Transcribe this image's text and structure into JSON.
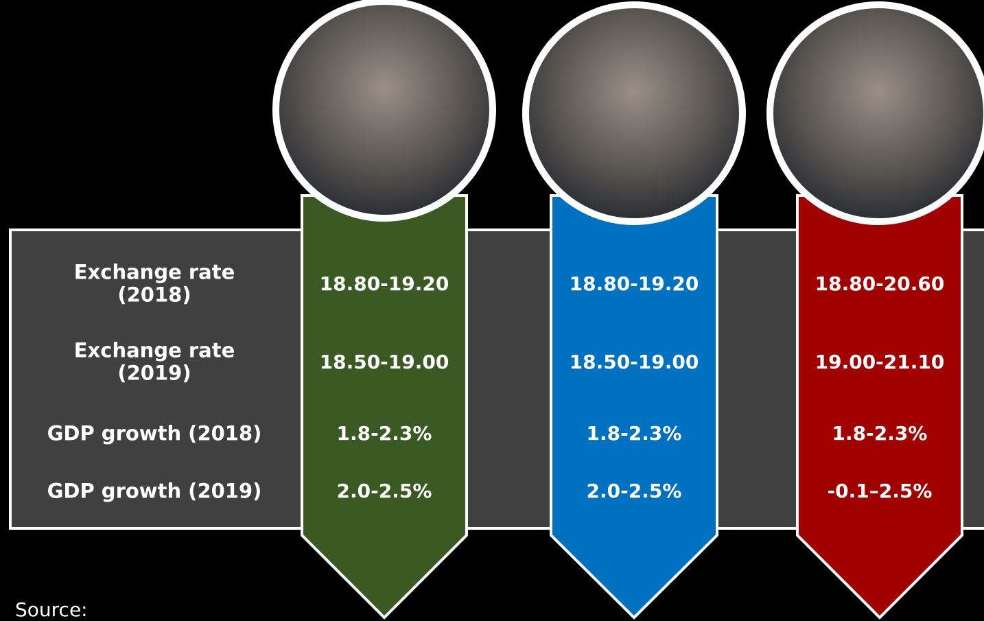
{
  "table": {
    "row_labels": [
      "Exchange rate\n(2018)",
      "Exchange rate\n(2019)",
      "GDP growth (2018)",
      "GDP growth (2019)"
    ],
    "columns": [
      {
        "values": [
          "18.80-19.20",
          "18.50-19.00",
          "1.8-2.3%",
          "2.0-2.5%"
        ]
      },
      {
        "values": [
          "18.80-19.20",
          "18.50-19.00",
          "1.8-2.3%",
          "2.0-2.5%"
        ]
      },
      {
        "values": [
          "18.80-20.60",
          "19.00-21.10",
          "1.8-2.3%",
          "-0.1–2.5%"
        ]
      }
    ]
  },
  "footer": {
    "source": "Source:"
  }
}
